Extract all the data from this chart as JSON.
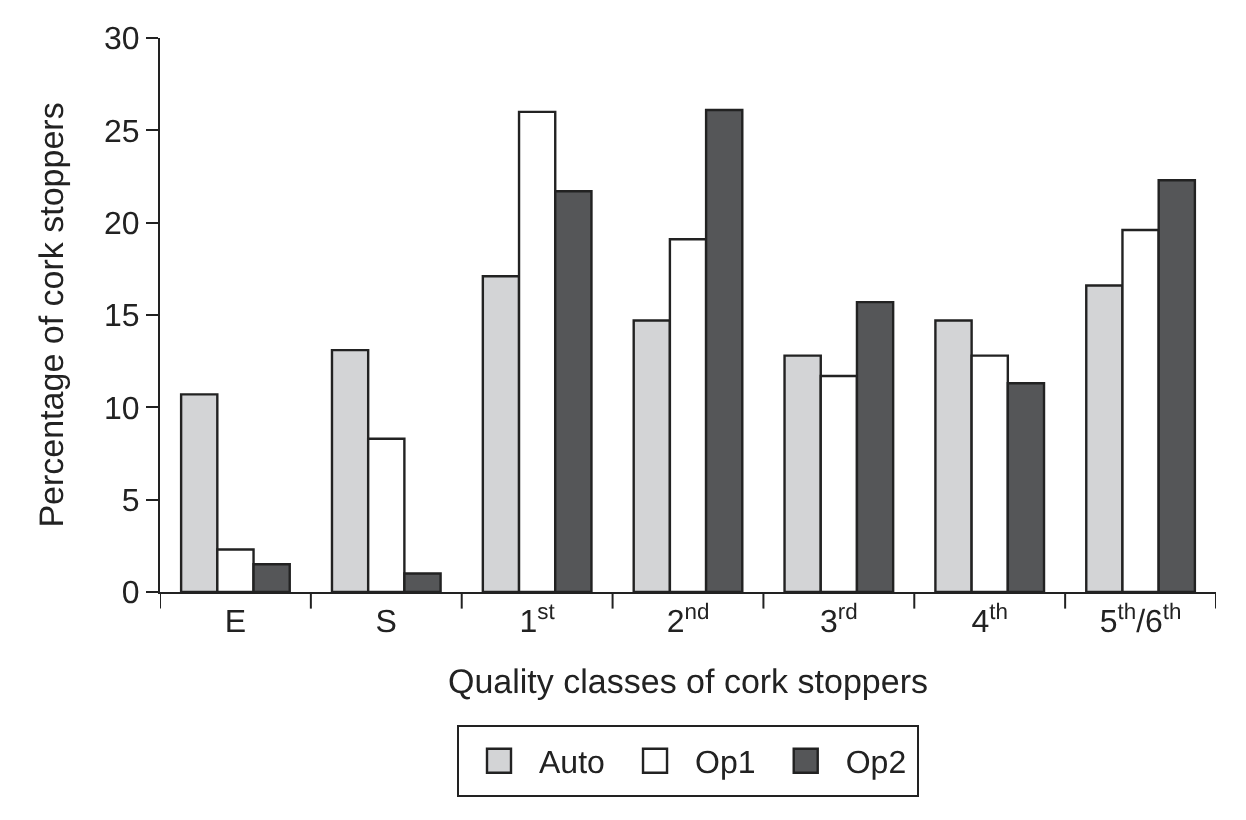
{
  "chart_data": {
    "type": "bar",
    "xlabel": "Quality classes of cork stoppers",
    "ylabel": "Percentage of cork stoppers",
    "categories": [
      "E",
      "S",
      "1$^{st}$",
      "2$^{nd}$",
      "3$^{rd}$",
      "4$^{th}$",
      "5$^{th}$/6$^{th}$"
    ],
    "series": [
      {
        "name": "Auto",
        "color": "#d3d4d6",
        "values": [
          10.7,
          13.1,
          17.1,
          14.7,
          12.8,
          14.7,
          16.6
        ]
      },
      {
        "name": "Op1",
        "color": "#ffffff",
        "values": [
          2.3,
          8.3,
          26.0,
          19.1,
          11.7,
          12.8,
          19.6
        ]
      },
      {
        "name": "Op2",
        "color": "#555658",
        "values": [
          1.5,
          1.0,
          21.7,
          26.1,
          15.7,
          11.3,
          22.3
        ]
      }
    ],
    "ylim": [
      0,
      30
    ],
    "yticks": [
      0,
      5,
      10,
      15,
      20,
      25,
      30
    ],
    "grid": false,
    "legend": "bottom"
  }
}
